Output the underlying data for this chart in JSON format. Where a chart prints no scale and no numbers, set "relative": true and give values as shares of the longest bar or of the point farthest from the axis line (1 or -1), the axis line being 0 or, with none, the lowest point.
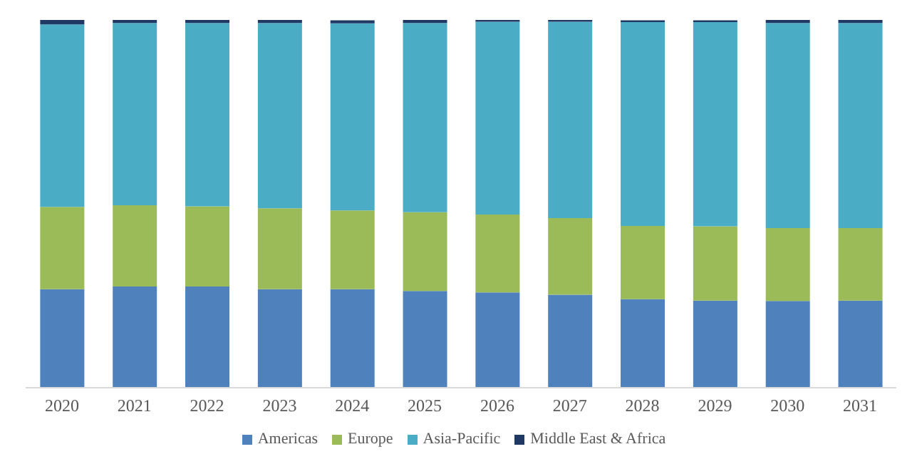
{
  "chart_data": {
    "type": "bar",
    "stacked": true,
    "relative": true,
    "legend": "bottom",
    "categories": [
      "2020",
      "2021",
      "2022",
      "2023",
      "2024",
      "2025",
      "2026",
      "2027",
      "2028",
      "2029",
      "2030",
      "2031"
    ],
    "series": [
      {
        "name": "Americas",
        "color": "#4f81bd",
        "values": [
          0.268,
          0.275,
          0.275,
          0.268,
          0.268,
          0.263,
          0.259,
          0.253,
          0.241,
          0.237,
          0.236,
          0.237
        ]
      },
      {
        "name": "Europe",
        "color": "#9bbb59",
        "values": [
          0.224,
          0.221,
          0.218,
          0.22,
          0.214,
          0.214,
          0.212,
          0.208,
          0.199,
          0.202,
          0.198,
          0.197
        ]
      },
      {
        "name": "Asia-Pacific",
        "color": "#4bacc6",
        "values": [
          0.496,
          0.496,
          0.499,
          0.504,
          0.509,
          0.515,
          0.524,
          0.534,
          0.554,
          0.555,
          0.558,
          0.558
        ]
      },
      {
        "name": "Middle East & Africa",
        "color": "#1f3864",
        "values": [
          0.012,
          0.008,
          0.008,
          0.008,
          0.008,
          0.008,
          0.005,
          0.005,
          0.005,
          0.005,
          0.008,
          0.008
        ]
      }
    ]
  }
}
